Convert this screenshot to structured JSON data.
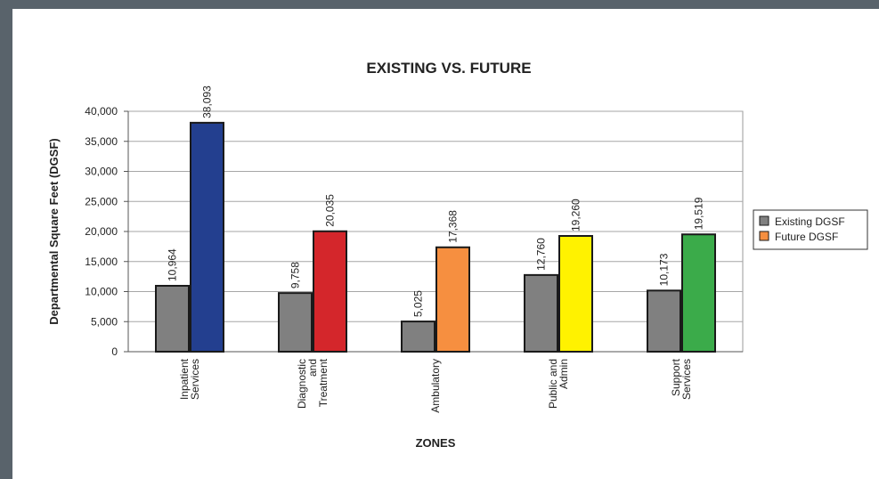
{
  "chart_data": {
    "type": "bar",
    "title": "EXISTING VS. FUTURE",
    "xlabel": "ZONES",
    "ylabel": "Departmental Square Feet (DGSF)",
    "ylim": [
      0,
      40000
    ],
    "yticks": [
      "0",
      "5,000",
      "10,000",
      "15,000",
      "20,000",
      "25,000",
      "30,000",
      "35,000",
      "40,000"
    ],
    "grid": true,
    "legend_position": "right",
    "categories": [
      [
        "Inpatient",
        "Services"
      ],
      [
        "Diagnostic",
        "and",
        "Treatment"
      ],
      [
        "Ambulatory"
      ],
      [
        "Public and",
        "Admin"
      ],
      [
        "Support",
        "Services"
      ]
    ],
    "series": [
      {
        "name": "Existing DGSF",
        "values": [
          10964,
          9758,
          5025,
          12760,
          10173
        ],
        "labels": [
          "10,964",
          "9,758",
          "5,025",
          "12,760",
          "10,173"
        ],
        "colors": [
          "#808080",
          "#808080",
          "#808080",
          "#808080",
          "#808080"
        ],
        "legend_color": "#808080"
      },
      {
        "name": "Future DGSF",
        "values": [
          38093,
          20035,
          17368,
          19260,
          19519
        ],
        "labels": [
          "38,093",
          "20,035",
          "17,368",
          "19,260",
          "19,519"
        ],
        "colors": [
          "#233f8f",
          "#d4262b",
          "#f68f40",
          "#fff200",
          "#3bab4a"
        ],
        "legend_color": "#f68f40"
      }
    ]
  }
}
